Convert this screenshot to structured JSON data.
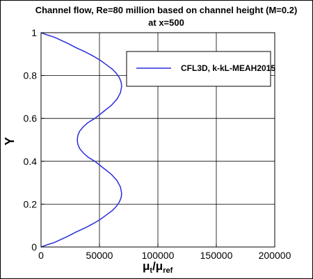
{
  "chart_data": {
    "type": "line",
    "title": "Channel flow, Re=80 million based on channel height (M=0.2)",
    "subtitle": "at x=500",
    "xlabel": "μ",
    "xlabel_sub1": "t",
    "xlabel_mid": "/μ",
    "xlabel_sub2": "ref",
    "ylabel": "Y",
    "xlim": [
      0,
      200000
    ],
    "ylim": [
      0,
      1
    ],
    "xticks": [
      0,
      50000,
      100000,
      150000,
      200000
    ],
    "xtick_labels": [
      "0",
      "50000",
      "100000",
      "150000",
      "200000"
    ],
    "yticks": [
      0,
      0.2,
      0.4,
      0.6,
      0.8,
      1
    ],
    "ytick_labels": [
      "0",
      "0.2",
      "0.4",
      "0.6",
      "0.8",
      "1"
    ],
    "grid": true,
    "legend_position": "top-right",
    "series": [
      {
        "name": "CFL3D, k-kL-MEAH2015",
        "color": "#2b2bdb",
        "x": [
          0,
          5000,
          11000,
          17000,
          23000,
          30000,
          38000,
          45000,
          51000,
          56000,
          61000,
          64500,
          67000,
          68500,
          69000,
          68000,
          65000,
          60000,
          53000,
          46000,
          40000,
          36000,
          33000,
          31500,
          31000,
          31500,
          33000,
          36000,
          40000,
          46000,
          53000,
          60000,
          65000,
          68000,
          69000,
          68500,
          67000,
          64500,
          61000,
          56000,
          51000,
          45000,
          38000,
          30000,
          23000,
          17000,
          11000,
          5000,
          0
        ],
        "y": [
          0,
          0.01,
          0.02,
          0.035,
          0.05,
          0.07,
          0.09,
          0.11,
          0.13,
          0.15,
          0.17,
          0.19,
          0.21,
          0.23,
          0.25,
          0.28,
          0.31,
          0.34,
          0.37,
          0.4,
          0.42,
          0.44,
          0.46,
          0.48,
          0.5,
          0.52,
          0.54,
          0.56,
          0.58,
          0.6,
          0.63,
          0.66,
          0.69,
          0.72,
          0.75,
          0.77,
          0.79,
          0.81,
          0.83,
          0.85,
          0.87,
          0.89,
          0.91,
          0.93,
          0.95,
          0.965,
          0.98,
          0.99,
          1.0
        ]
      }
    ]
  }
}
